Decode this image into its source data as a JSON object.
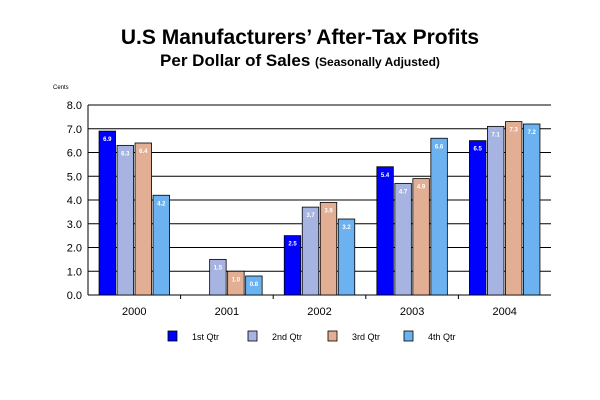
{
  "chart_data": {
    "type": "bar",
    "title": "U.S Manufacturers’ After-Tax Profits",
    "subtitle": "Per Dollar of Sales",
    "subtitle_note": "(Seasonally Adjusted)",
    "ylabel": "Cents",
    "xlabel": "",
    "ylim": [
      0,
      8
    ],
    "ytick_step": 1,
    "ytick_labels": [
      "0.0",
      "1.0",
      "2.0",
      "3.0",
      "4.0",
      "5.0",
      "6.0",
      "7.0",
      "8.0"
    ],
    "grid": true,
    "legend_position": "bottom",
    "categories": [
      "2000",
      "2001",
      "2002",
      "2003",
      "2004"
    ],
    "series": [
      {
        "name": "1st Qtr",
        "color": "#0000ff",
        "values": [
          6.9,
          null,
          2.5,
          5.4,
          6.5
        ],
        "labels": [
          "6.9",
          "",
          "2.5",
          "5.4",
          "6.5"
        ]
      },
      {
        "name": "2nd Qtr",
        "color": "#a7b4e2",
        "values": [
          6.3,
          1.5,
          3.7,
          4.7,
          7.1
        ],
        "labels": [
          "6.3",
          "1.5",
          "3.7",
          "4.7",
          "7.1"
        ]
      },
      {
        "name": "3rd Qtr",
        "color": "#e2ae94",
        "values": [
          6.4,
          1.0,
          3.9,
          4.9,
          7.3
        ],
        "labels": [
          "6.4",
          "1.0",
          "3.9",
          "4.9",
          "7.3"
        ]
      },
      {
        "name": "4th Qtr",
        "color": "#6cb2f0",
        "values": [
          4.2,
          0.8,
          3.2,
          6.6,
          7.2
        ],
        "labels": [
          "4.2",
          "0.8",
          "3.2",
          "6.6",
          "7.2"
        ]
      }
    ]
  }
}
